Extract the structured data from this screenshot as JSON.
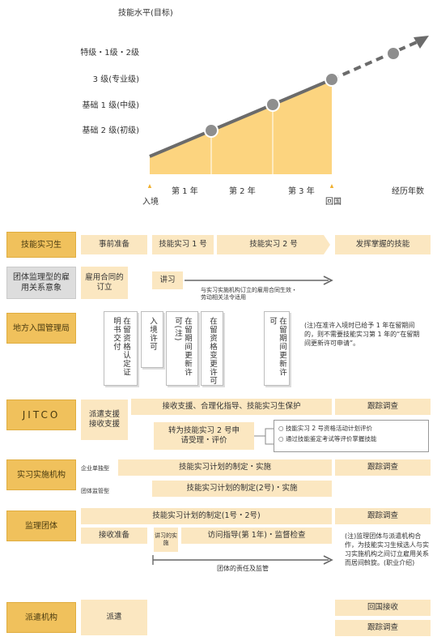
{
  "chart": {
    "y_title": "技能水平(目标)",
    "levels": [
      "特级・1级・2级",
      "3 级(专业级)",
      "基础 1 级(中级)",
      "基础 2 级(初级)"
    ],
    "x_labels": [
      "入境",
      "第 1 年",
      "第 2 年",
      "第 3 年",
      "回国",
      "经历年数"
    ]
  },
  "phases": [
    "事前准备",
    "技能实习 1 号",
    "技能实习 2 号",
    "发挥掌握的技能"
  ],
  "rows": {
    "trainee": {
      "label": "技能实习生"
    },
    "employment": {
      "label": "团体监理型的雇用关系意象",
      "contract": "雇用合同的订立",
      "lecture": "讲习",
      "lecture_note": "与实习实施机构订立的雇用合同生效・劳动相关法令适用"
    },
    "immigration": {
      "label": "地方入国管理局",
      "cards": [
        "在留资格认定证明书交付",
        "入境许可",
        "在留期间更新许可(注)",
        "在留资格变更许可",
        "在留期间更新许可"
      ],
      "note": "(注)在准许入境时已给予 1 年在留期间的，则不需要技能实习第 1 年的“在留期间更新许可申请”。"
    },
    "jitco": {
      "label": "JITCO",
      "support": "派遣支援接收支援",
      "protection": "接收支援、合理化指导、技能实习生保护",
      "followup": "跟踪调查",
      "transfer": "转为技能实习 2 号申请受理・评价",
      "eval1": "技能实习 2 号资格活动计划评价",
      "eval2": "通过技能鉴定考试等评价掌握技能"
    },
    "implementing": {
      "label": "实习实施机构",
      "type1": "企业单独型",
      "type2": "团体监管型",
      "plan1": "技能实习计划的制定・实施",
      "plan2": "技能实习计划的制定(2号)・实施",
      "followup": "跟踪调查"
    },
    "supervising": {
      "label": "监理团体",
      "plan": "技能实习计划的制定(1号・2号)",
      "followup": "跟踪调查",
      "prep": "接收准备",
      "lecture": "讲习的实施",
      "visit": "访问指导(第 1年)・监督检查",
      "responsibility": "团体的责任及监管",
      "note": "(注)监理团体与派遣机构合作，为技能实习生候选人与实习实施机构之间订立雇用关系而居间斡旋。(职业介绍)"
    },
    "sending": {
      "label": "派遣机构",
      "dispatch": "派遣",
      "return": "回国接收",
      "followup": "跟踪调查"
    }
  },
  "colors": {
    "label_fill": "#f0c15c",
    "bar_fill": "#fbe7c1",
    "chart_area": "#fcd47f",
    "line": "#6b6b6b",
    "node": "#8e8e8e"
  }
}
